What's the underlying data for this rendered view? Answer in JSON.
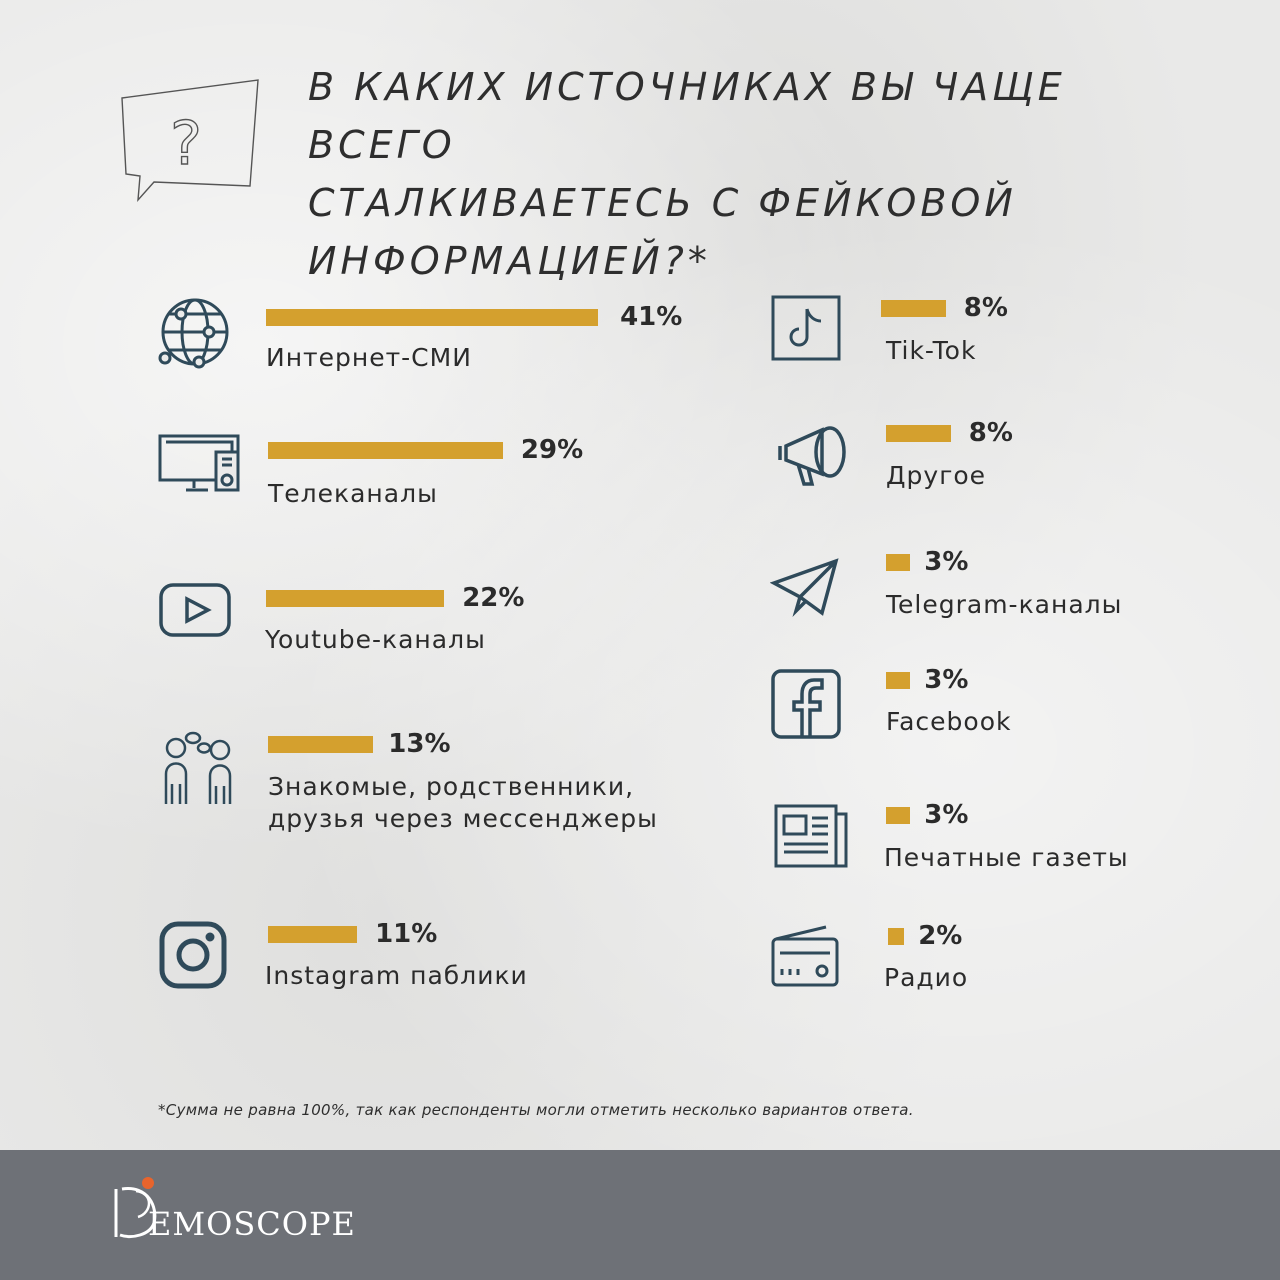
{
  "title_lines": [
    "В каких источниках вы чаще всего",
    "сталкиваетесь с фейковой",
    "информацией?*"
  ],
  "footnote": "*Сумма не равна 100%, так как респонденты могли отметить несколько вариантов ответа.",
  "brand": {
    "logo_text": "EMOSCOPE"
  },
  "colors": {
    "bar": "#d4a02e",
    "icon": "#2f4a5a",
    "footer": "#6e7177"
  },
  "chart_data": {
    "type": "bar",
    "categories": [
      "Интернет-СМИ",
      "Телеканалы",
      "Youtube-каналы",
      "Знакомые, родственники, друзья через мессенджеры",
      "Instagram паблики",
      "Tik-Tok",
      "Другое",
      "Telegram-каналы",
      "Facebook",
      "Печатные газеты",
      "Радио"
    ],
    "values": [
      41,
      29,
      22,
      13,
      11,
      8,
      8,
      3,
      3,
      3,
      2
    ],
    "value_labels": [
      "41%",
      "29%",
      "22%",
      "13%",
      "11%",
      "8%",
      "8%",
      "3%",
      "3%",
      "3%",
      "2%"
    ],
    "label_lines": [
      [
        "Интернет-СМИ"
      ],
      [
        "Телеканалы"
      ],
      [
        "Youtube-каналы"
      ],
      [
        "Знакомые, родственники,",
        "друзья через мессенджеры"
      ],
      [
        "Instagram паблики"
      ],
      [
        "Tik-Tok"
      ],
      [
        "Другое"
      ],
      [
        "Telegram-каналы"
      ],
      [
        "Facebook"
      ],
      [
        "Печатные газеты"
      ],
      [
        "Радио"
      ]
    ],
    "icons": [
      "globe-icon",
      "tv-icon",
      "youtube-icon",
      "people-chat-icon",
      "instagram-icon",
      "tiktok-icon",
      "megaphone-icon",
      "telegram-icon",
      "facebook-icon",
      "newspaper-icon",
      "radio-icon"
    ],
    "unit": "%"
  }
}
